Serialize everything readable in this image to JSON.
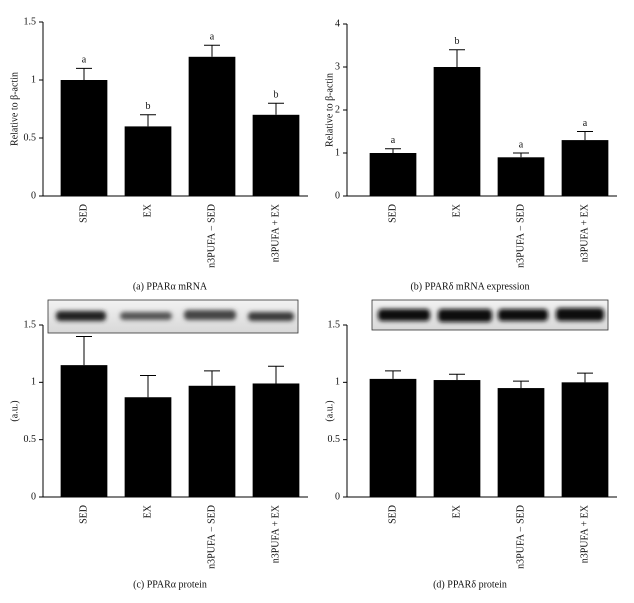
{
  "chart_data": {
    "charts": [
      {
        "type": "bar",
        "caption": "(a) PPARα mRNA",
        "y_label": "Relative to β-actin",
        "categories": [
          "SED",
          "EX",
          "n3PUFA − SED",
          "n3PUFA + EX"
        ],
        "values": [
          1.0,
          0.6,
          1.2,
          0.7
        ],
        "errors": [
          0.1,
          0.1,
          0.1,
          0.1
        ],
        "annotations": [
          "a",
          "b",
          "a",
          "b"
        ],
        "color": "#000000",
        "ylim": [
          0,
          1.5
        ],
        "yticks": [
          0,
          0.5,
          1,
          1.5
        ]
      },
      {
        "type": "bar",
        "caption": "(b) PPARδ mRNA expression",
        "y_label": "Relative to β-actin",
        "categories": [
          "SED",
          "EX",
          "n3PUFA − SED",
          "n3PUFA + EX"
        ],
        "values": [
          1.0,
          3.0,
          0.9,
          1.3
        ],
        "errors": [
          0.1,
          0.4,
          0.1,
          0.2
        ],
        "annotations": [
          "a",
          "b",
          "a",
          "a"
        ],
        "color": "#000000",
        "ylim": [
          0,
          4
        ],
        "yticks": [
          0,
          1,
          2,
          3,
          4
        ]
      },
      {
        "type": "bar",
        "caption": "(c) PPARα protein",
        "y_label": "(a.u.)",
        "categories": [
          "SED",
          "EX",
          "n3PUFA − SED",
          "n3PUFA + EX"
        ],
        "values": [
          1.15,
          0.87,
          0.97,
          0.99
        ],
        "errors": [
          0.25,
          0.19,
          0.13,
          0.15
        ],
        "color": "#000000",
        "ylim": [
          0,
          1.5
        ],
        "yticks": [
          0,
          0.5,
          1,
          1.5
        ]
      },
      {
        "type": "bar",
        "caption": "(d) PPARδ protein",
        "y_label": "(a.u.)",
        "categories": [
          "SED",
          "EX",
          "n3PUFA − SED",
          "n3PUFA + EX"
        ],
        "values": [
          1.03,
          1.02,
          0.95,
          1.0
        ],
        "errors": [
          0.07,
          0.05,
          0.06,
          0.08
        ],
        "color": "#000000",
        "ylim": [
          0,
          1.5
        ],
        "yticks": [
          0,
          0.5,
          1,
          1.5
        ]
      }
    ]
  }
}
